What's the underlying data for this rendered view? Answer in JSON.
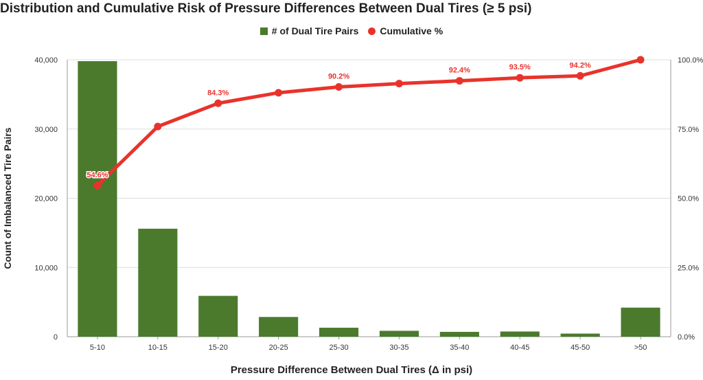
{
  "title": "Distribution and Cumulative Risk of Pressure Differences Between Dual Tires (≥ 5 psi)",
  "legend": {
    "bar_label": "# of Dual Tire Pairs",
    "line_label": "Cumulative %"
  },
  "colors": {
    "bar": "#4b7a2d",
    "line": "#e8332c",
    "grid": "#dddddd",
    "axis": "#999999"
  },
  "chart_data": {
    "type": "bar",
    "title": "Distribution and Cumulative Risk of Pressure Differences Between Dual Tires (≥ 5 psi)",
    "xlabel": "Pressure Difference Between Dual Tires (Δ in psi)",
    "ylabel": "Count of Imbalanced Tire Pairs",
    "categories": [
      "5-10",
      "10-15",
      "15-20",
      "20-25",
      "25-30",
      "30-35",
      "35-40",
      "40-45",
      "45-50",
      ">50"
    ],
    "series": [
      {
        "name": "# of Dual Tire Pairs",
        "type": "bar",
        "axis": "left",
        "values": [
          39800,
          15600,
          5900,
          2850,
          1300,
          850,
          700,
          750,
          450,
          4200
        ]
      },
      {
        "name": "Cumulative %",
        "type": "line",
        "axis": "right",
        "values": [
          54.6,
          75.9,
          84.3,
          88.1,
          90.2,
          91.4,
          92.4,
          93.5,
          94.2,
          100.0
        ]
      }
    ],
    "data_labels": [
      {
        "index": 0,
        "text": "54.6%"
      },
      {
        "index": 2,
        "text": "84.3%"
      },
      {
        "index": 4,
        "text": "90.2%"
      },
      {
        "index": 6,
        "text": "92.4%"
      },
      {
        "index": 7,
        "text": "93.5%"
      },
      {
        "index": 8,
        "text": "94.2%"
      }
    ],
    "ylim_left": [
      0,
      40000
    ],
    "ylim_right": [
      0,
      100
    ],
    "yticks_left": [
      "0",
      "10,000",
      "20,000",
      "30,000",
      "40,000"
    ],
    "yticks_right": [
      "0.0%",
      "25.0%",
      "50.0%",
      "75.0%",
      "100.0%"
    ],
    "grid": true,
    "legend_position": "top-center"
  }
}
